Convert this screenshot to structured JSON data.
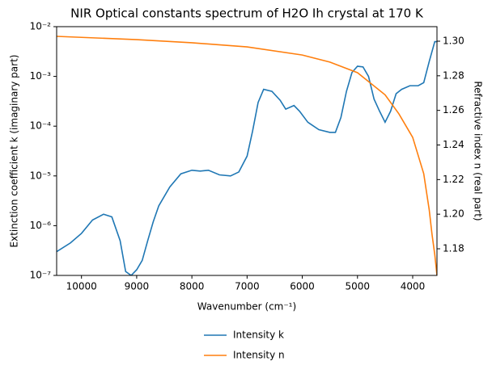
{
  "chart_data": {
    "type": "line",
    "title": "NIR Optical constants spectrum of H2O Ih crystal at 170 K",
    "x_label": "Wavenumber (cm⁻¹)",
    "y_label": "Extinction coefficient k (imaginary part)",
    "y2_label": "Refractive index n (real part)",
    "xlim": [
      10450,
      3560
    ],
    "xticks": [
      10000,
      9000,
      8000,
      7000,
      6000,
      5000,
      4000
    ],
    "ylim": [
      1e-07,
      0.01
    ],
    "yscale": "log",
    "yticks": [
      {
        "value": 1e-07,
        "label": "10⁻⁷"
      },
      {
        "value": 1e-06,
        "label": "10⁻⁶"
      },
      {
        "value": 1e-05,
        "label": "10⁻⁵"
      },
      {
        "value": 0.0001,
        "label": "10⁻⁴"
      },
      {
        "value": 0.001,
        "label": "10⁻³"
      },
      {
        "value": 0.01,
        "label": "10⁻²"
      }
    ],
    "y2lim": [
      1.1646,
      1.3084
    ],
    "y2ticks": [
      1.18,
      {
        "value": 1.2,
        "label": "1.20"
      },
      1.22,
      1.24,
      1.26,
      1.28,
      {
        "value": 1.3,
        "label": "1.30"
      }
    ],
    "legend": "lower center",
    "series": [
      {
        "name": "Intensity k",
        "color": "#1f77b4",
        "x": [
          10450,
          10200,
          10000,
          9800,
          9600,
          9450,
          9300,
          9200,
          9100,
          9000,
          8900,
          8800,
          8700,
          8600,
          8400,
          8200,
          8000,
          7850,
          7700,
          7500,
          7300,
          7150,
          7000,
          6900,
          6800,
          6700,
          6550,
          6400,
          6300,
          6150,
          6050,
          5900,
          5700,
          5500,
          5400,
          5300,
          5200,
          5100,
          5000,
          4900,
          4800,
          4700,
          4600,
          4500,
          4400,
          4300,
          4200,
          4050,
          3900,
          3800,
          3700,
          3600,
          3560
        ],
        "values": [
          3e-07,
          4.5e-07,
          7e-07,
          1.3e-06,
          1.7e-06,
          1.5e-06,
          5e-07,
          1.2e-07,
          1e-07,
          1.3e-07,
          2e-07,
          5e-07,
          1.2e-06,
          2.5e-06,
          6e-06,
          1.1e-05,
          1.3e-05,
          1.25e-05,
          1.3e-05,
          1.05e-05,
          1e-05,
          1.2e-05,
          2.5e-05,
          8e-05,
          0.0003,
          0.00055,
          0.0005,
          0.00033,
          0.00022,
          0.00026,
          0.0002,
          0.00012,
          8.5e-05,
          7.5e-05,
          7.5e-05,
          0.00015,
          0.0005,
          0.0012,
          0.0016,
          0.00155,
          0.001,
          0.00035,
          0.0002,
          0.00012,
          0.0002,
          0.00045,
          0.00055,
          0.00065,
          0.00065,
          0.00075,
          0.002,
          0.005,
          0.005
        ]
      },
      {
        "name": "Intensity n",
        "color": "#ff7f0e",
        "axis": "y2",
        "x": [
          10450,
          9000,
          8000,
          7000,
          6000,
          5500,
          5000,
          4500,
          4250,
          4000,
          3800,
          3700,
          3650,
          3600,
          3560
        ],
        "values": [
          1.3028,
          1.3009,
          1.2991,
          1.2967,
          1.292,
          1.2879,
          1.2818,
          1.269,
          1.258,
          1.2444,
          1.2234,
          1.2024,
          1.1884,
          1.1767,
          1.1646
        ]
      }
    ]
  }
}
